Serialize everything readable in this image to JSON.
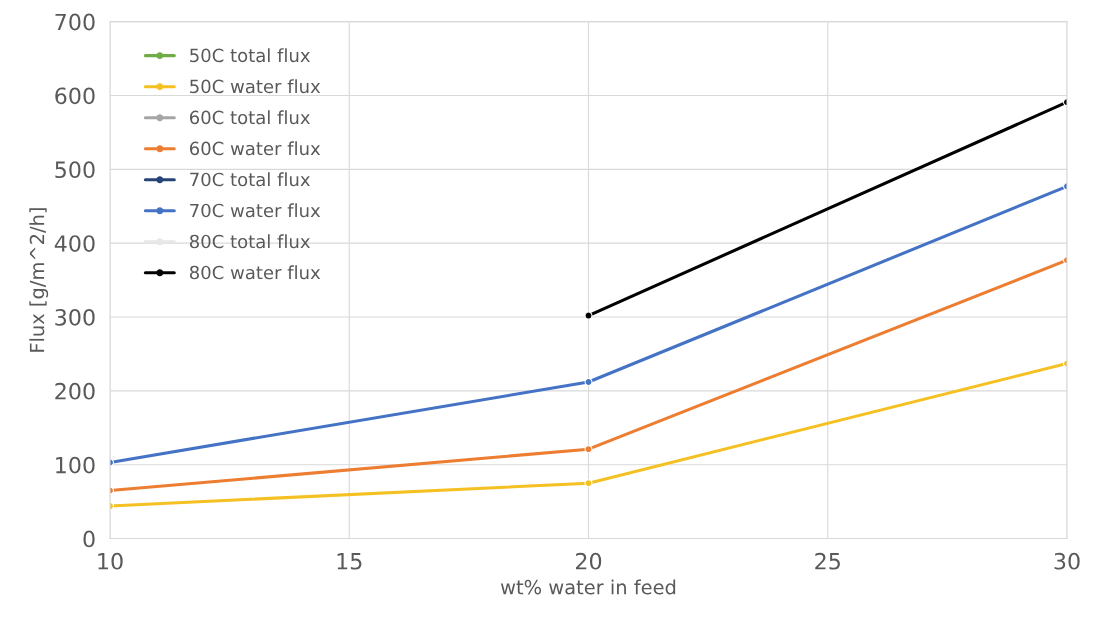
{
  "chart_data": {
    "type": "line",
    "xlabel": "wt% water in feed",
    "ylabel": "Flux [g/m^2/h]",
    "x": [
      10,
      20,
      30
    ],
    "series": [
      {
        "name": "50C total flux",
        "color": "#70ad47",
        "values": [
          null,
          null,
          null
        ]
      },
      {
        "name": "50C water flux",
        "color": "#f5c021",
        "values": [
          44,
          75,
          237
        ]
      },
      {
        "name": "60C total flux",
        "color": "#a5a5a5",
        "values": [
          null,
          null,
          null
        ]
      },
      {
        "name": "60C water flux",
        "color": "#ed7d31",
        "values": [
          65,
          121,
          377
        ]
      },
      {
        "name": "70C total flux",
        "color": "#264478",
        "values": [
          null,
          null,
          null
        ]
      },
      {
        "name": "70C water flux",
        "color": "#4472c4",
        "values": [
          103,
          212,
          477
        ]
      },
      {
        "name": "80C total flux",
        "color": "#e7e7e7",
        "values": [
          null,
          null,
          null
        ]
      },
      {
        "name": "80C water flux",
        "color": "#000000",
        "values": [
          null,
          302,
          591
        ]
      }
    ],
    "xlim": [
      10,
      30
    ],
    "xticks": [
      10,
      15,
      20,
      25,
      30
    ],
    "ylim": [
      0,
      700
    ],
    "yticks": [
      0,
      100,
      200,
      300,
      400,
      500,
      600,
      700
    ],
    "grid": true,
    "legend": "top left",
    "marker": "circle",
    "line_style": "solid"
  }
}
